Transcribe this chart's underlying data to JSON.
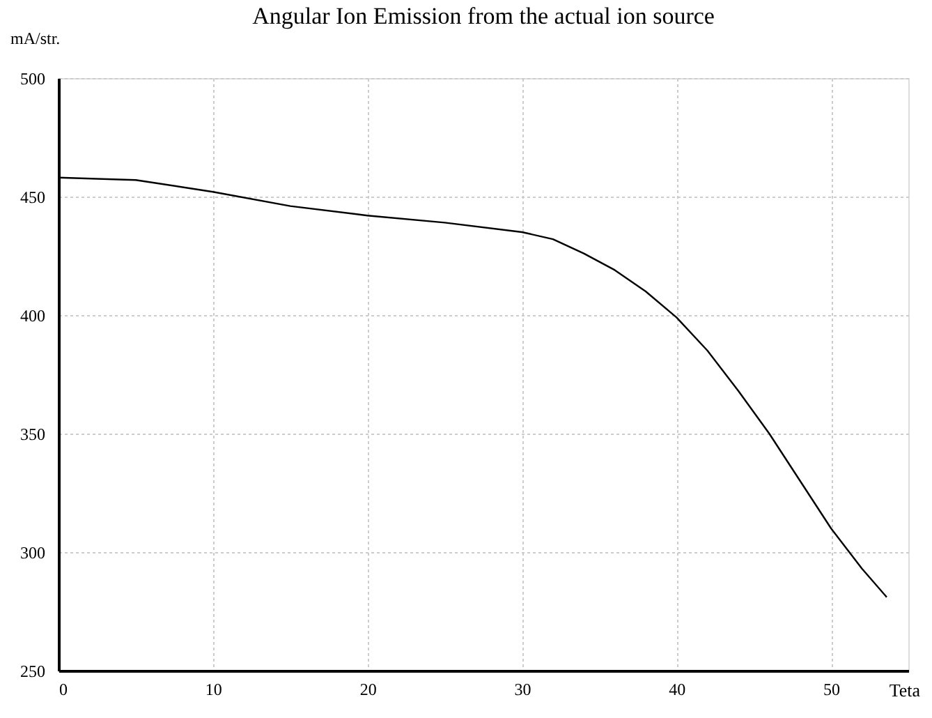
{
  "chart_data": {
    "type": "line",
    "title": "Angular Ion Emission from the actual ion source",
    "xlabel": "Teta",
    "ylabel": "mA/str.",
    "x": [
      0,
      5,
      10,
      15,
      20,
      25,
      30,
      32,
      34,
      36,
      38,
      40,
      42,
      44,
      46,
      48,
      50,
      52,
      53.6
    ],
    "values": [
      458,
      457,
      452,
      446,
      442,
      439,
      435,
      432,
      426,
      419,
      410,
      399,
      385,
      368,
      350,
      330,
      310,
      293,
      281
    ],
    "color": "#000000",
    "xlim": [
      0,
      55
    ],
    "ylim": [
      250,
      500
    ],
    "xticks": [
      0,
      10,
      20,
      30,
      40,
      50
    ],
    "yticks": [
      250,
      300,
      350,
      400,
      450,
      500
    ],
    "grid": true,
    "line_style": "solid",
    "marker": "none"
  }
}
